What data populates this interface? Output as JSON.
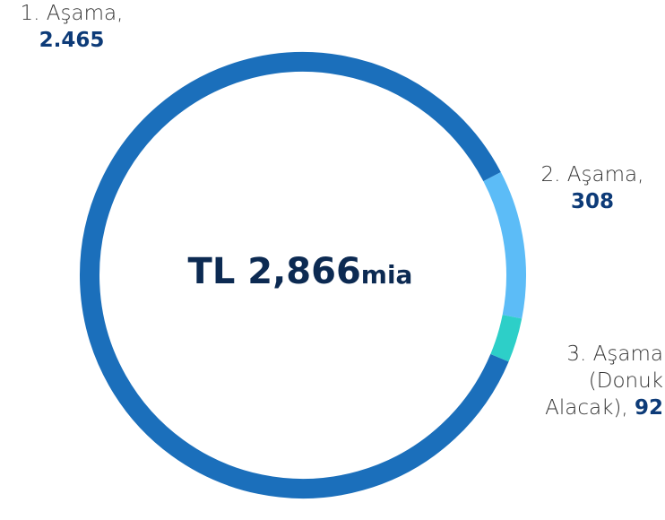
{
  "chart_data": {
    "type": "donut",
    "categories": [
      "1. Aşama,",
      "2. Aşama,",
      "3. Aşama (Donuk Alacak),"
    ],
    "values": [
      2465,
      308,
      92
    ],
    "value_labels": [
      "2.465",
      "308",
      "92"
    ],
    "colors": [
      "#1b6fbb",
      "#5cbcf7",
      "#2dcfc8"
    ],
    "center_value": "TL 2,866",
    "center_unit": "mia"
  }
}
